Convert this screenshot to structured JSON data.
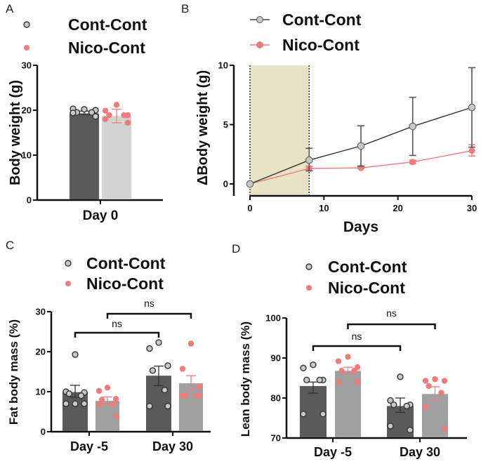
{
  "colors": {
    "cont_bar_dark": "#5a5a5a",
    "nico_bar_light_A": "#d3d3d3",
    "nico_bar_light": "#a0a0a0",
    "cont_point": "#c8c8c8",
    "nico_point": "#f07b7b",
    "shade": "#e8e3c6",
    "axis": "#111111"
  },
  "chart_data": [
    {
      "id": "A",
      "panel_label": "A",
      "type": "bar",
      "title": "",
      "xlabel": "",
      "ylabel": "Body weight (g)",
      "ylim": [
        0,
        30
      ],
      "yticks": [
        "0",
        "10",
        "20",
        "30"
      ],
      "categories": [
        "Day 0"
      ],
      "legend": [
        "Cont-Cont",
        "Nico-Cont"
      ],
      "legend_position": "top",
      "series": [
        {
          "name": "Cont-Cont",
          "values": [
            19.3
          ],
          "error": [
            [
              19.0,
              19.8
            ]
          ],
          "points": [
            [
              20.2,
              20.3,
              20.0,
              19.5,
              19.5,
              19.4,
              18.6
            ]
          ]
        },
        {
          "name": "Nico-Cont",
          "values": [
            18.7
          ],
          "error": [
            [
              17.2,
              20.2
            ]
          ],
          "points": [
            [
              21.2,
              19.9,
              18.9,
              18.9,
              18.9,
              18.0,
              17.2
            ]
          ]
        }
      ]
    },
    {
      "id": "B",
      "panel_label": "B",
      "type": "line",
      "title": "",
      "xlabel": "Days",
      "ylabel": "ΔBody weight (g)",
      "xlim": [
        0,
        30
      ],
      "ylim": [
        0,
        10
      ],
      "xticks": [
        "0",
        "10",
        "20",
        "30"
      ],
      "yticks": [
        "0",
        "5",
        "10"
      ],
      "shaded_region": [
        0,
        8
      ],
      "legend": [
        "Cont-Cont",
        "Nico-Cont"
      ],
      "legend_position": "top",
      "x": [
        0,
        8,
        15,
        22,
        30
      ],
      "series": [
        {
          "name": "Cont-Cont",
          "values": [
            0,
            2.0,
            3.2,
            4.85,
            6.45
          ],
          "err_low": [
            0,
            1.1,
            1.5,
            2.4,
            3.1
          ],
          "err_high": [
            0,
            3.0,
            4.9,
            7.3,
            9.8
          ]
        },
        {
          "name": "Nico-Cont",
          "values": [
            0,
            1.3,
            1.35,
            1.85,
            2.8
          ],
          "err_low": [
            0,
            1.1,
            1.3,
            1.7,
            2.35
          ],
          "err_high": [
            0,
            1.5,
            1.4,
            2.0,
            3.3
          ]
        }
      ]
    },
    {
      "id": "C",
      "panel_label": "C",
      "type": "bar",
      "title": "",
      "xlabel": "",
      "ylabel": "Fat body mass (%)",
      "ylim": [
        0,
        30
      ],
      "yticks": [
        "0",
        "10",
        "20",
        "30"
      ],
      "categories": [
        "Day -5",
        "Day 30"
      ],
      "legend": [
        "Cont-Cont",
        "Nico-Cont"
      ],
      "legend_position": "top",
      "significance": [
        {
          "label": "ns",
          "from": "Cont-Cont|Day -5",
          "to": "Cont-Cont|Day 30",
          "level": 1
        },
        {
          "label": "ns",
          "from": "Nico-Cont|Day -5",
          "to": "Nico-Cont|Day 30",
          "level": 2
        }
      ],
      "series": [
        {
          "name": "Cont-Cont",
          "values": [
            9.9,
            14.0
          ],
          "error": [
            [
              8.6,
              11.6
            ],
            [
              11.5,
              16.4
            ]
          ],
          "points": [
            [
              19.3,
              10.0,
              9.8,
              9.5,
              9.0,
              7.0,
              7.0,
              7.0
            ],
            [
              22.3,
              20.8,
              16.5,
              15.3,
              10.4,
              6.4,
              6.4
            ]
          ]
        },
        {
          "name": "Nico-Cont",
          "values": [
            7.7,
            12.1
          ],
          "error": [
            [
              6.8,
              8.7
            ],
            [
              10.3,
              14.0
            ]
          ],
          "points": [
            [
              11.0,
              10.2,
              8.2,
              8.0,
              6.8,
              6.8,
              3.8
            ],
            [
              22.0,
              15.7,
              11.3,
              9.0,
              9.0,
              9.0,
              9.0
            ]
          ]
        }
      ]
    },
    {
      "id": "D",
      "panel_label": "D",
      "type": "bar",
      "title": "",
      "xlabel": "",
      "ylabel": "Lean body mass (%)",
      "ylim": [
        70,
        100
      ],
      "yticks": [
        "70",
        "80",
        "90",
        "100"
      ],
      "categories": [
        "Day -5",
        "Day 30"
      ],
      "legend": [
        "Cont-Cont",
        "Nico-Cont"
      ],
      "legend_position": "top",
      "significance": [
        {
          "label": "ns",
          "from": "Cont-Cont|Day -5",
          "to": "Cont-Cont|Day 30",
          "level": 1
        },
        {
          "label": "ns",
          "from": "Nico-Cont|Day -5",
          "to": "Nico-Cont|Day 30",
          "level": 2
        }
      ],
      "series": [
        {
          "name": "Cont-Cont",
          "values": [
            83.0,
            78.0
          ],
          "error": [
            [
              81.2,
              84.0
            ],
            [
              76.4,
              80.0
            ]
          ],
          "points": [
            [
              88.3,
              87.5,
              84.5,
              84.5,
              84.5,
              76.0,
              76.0
            ],
            [
              85.3,
              79.4,
              78.3,
              78.3,
              78.0,
              73.0,
              72.0
            ]
          ]
        },
        {
          "name": "Nico-Cont",
          "values": [
            86.8,
            81.0
          ],
          "error": [
            [
              86.0,
              87.7
            ],
            [
              79.4,
              82.8
            ]
          ],
          "points": [
            [
              90.3,
              89.2,
              87.7,
              86.8,
              86.8,
              84.0,
              84.0
            ],
            [
              84.7,
              84.3,
              84.3,
              83.0,
              81.3,
              77.8,
              72.3
            ]
          ]
        }
      ]
    }
  ]
}
